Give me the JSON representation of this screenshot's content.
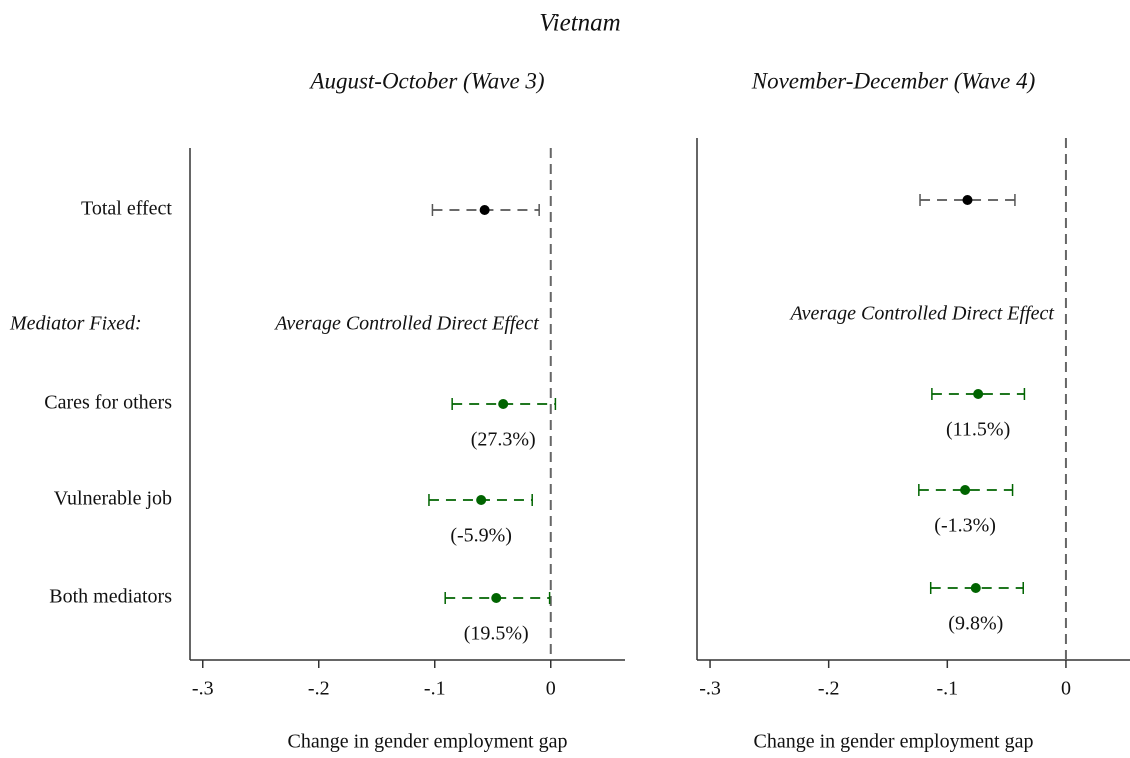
{
  "title": "Vietnam",
  "row_labels": [
    "Total effect",
    "Cares for others",
    "Vulnerable job",
    "Both mediators"
  ],
  "section_label": "Mediator Fixed:",
  "chart_data": [
    {
      "type": "errorbar",
      "subtitle": "August-October (Wave 3)",
      "note": "Average Controlled Direct Effect",
      "xlabel": "Change in gender employment gap",
      "values": [
        -0.057,
        -0.041,
        -0.06,
        -0.047
      ],
      "ci_low": [
        -0.102,
        -0.085,
        -0.105,
        -0.091
      ],
      "ci_high": [
        -0.01,
        0.004,
        -0.016,
        -0.001
      ],
      "mediation_shares": [
        "(27.3%)",
        "(-5.9%)",
        "(19.5%)"
      ],
      "colors": [
        "#000000",
        "#006400",
        "#006400",
        "#006400"
      ],
      "xlim": [
        -0.311,
        0.064
      ],
      "xticks": [
        {
          "value": -0.3,
          "label": "-.3"
        },
        {
          "value": -0.2,
          "label": "-.2"
        },
        {
          "value": -0.1,
          "label": "-.1"
        },
        0
      ]
    },
    {
      "type": "errorbar",
      "subtitle": "November-December (Wave 4)",
      "note": "Average Controlled Direct Effect",
      "xlabel": "Change in gender employment gap",
      "values": [
        -0.083,
        -0.074,
        -0.085,
        -0.076
      ],
      "ci_low": [
        -0.123,
        -0.113,
        -0.124,
        -0.114
      ],
      "ci_high": [
        -0.043,
        -0.035,
        -0.045,
        -0.036
      ],
      "mediation_shares": [
        "(11.5%)",
        "(-1.3%)",
        "(9.8%)"
      ],
      "colors": [
        "#000000",
        "#006400",
        "#006400",
        "#006400"
      ],
      "xlim": [
        -0.311,
        0.054
      ],
      "xticks": [
        {
          "value": -0.3,
          "label": "-.3"
        },
        {
          "value": -0.2,
          "label": "-.2"
        },
        {
          "value": -0.1,
          "label": "-.1"
        },
        0
      ]
    }
  ]
}
